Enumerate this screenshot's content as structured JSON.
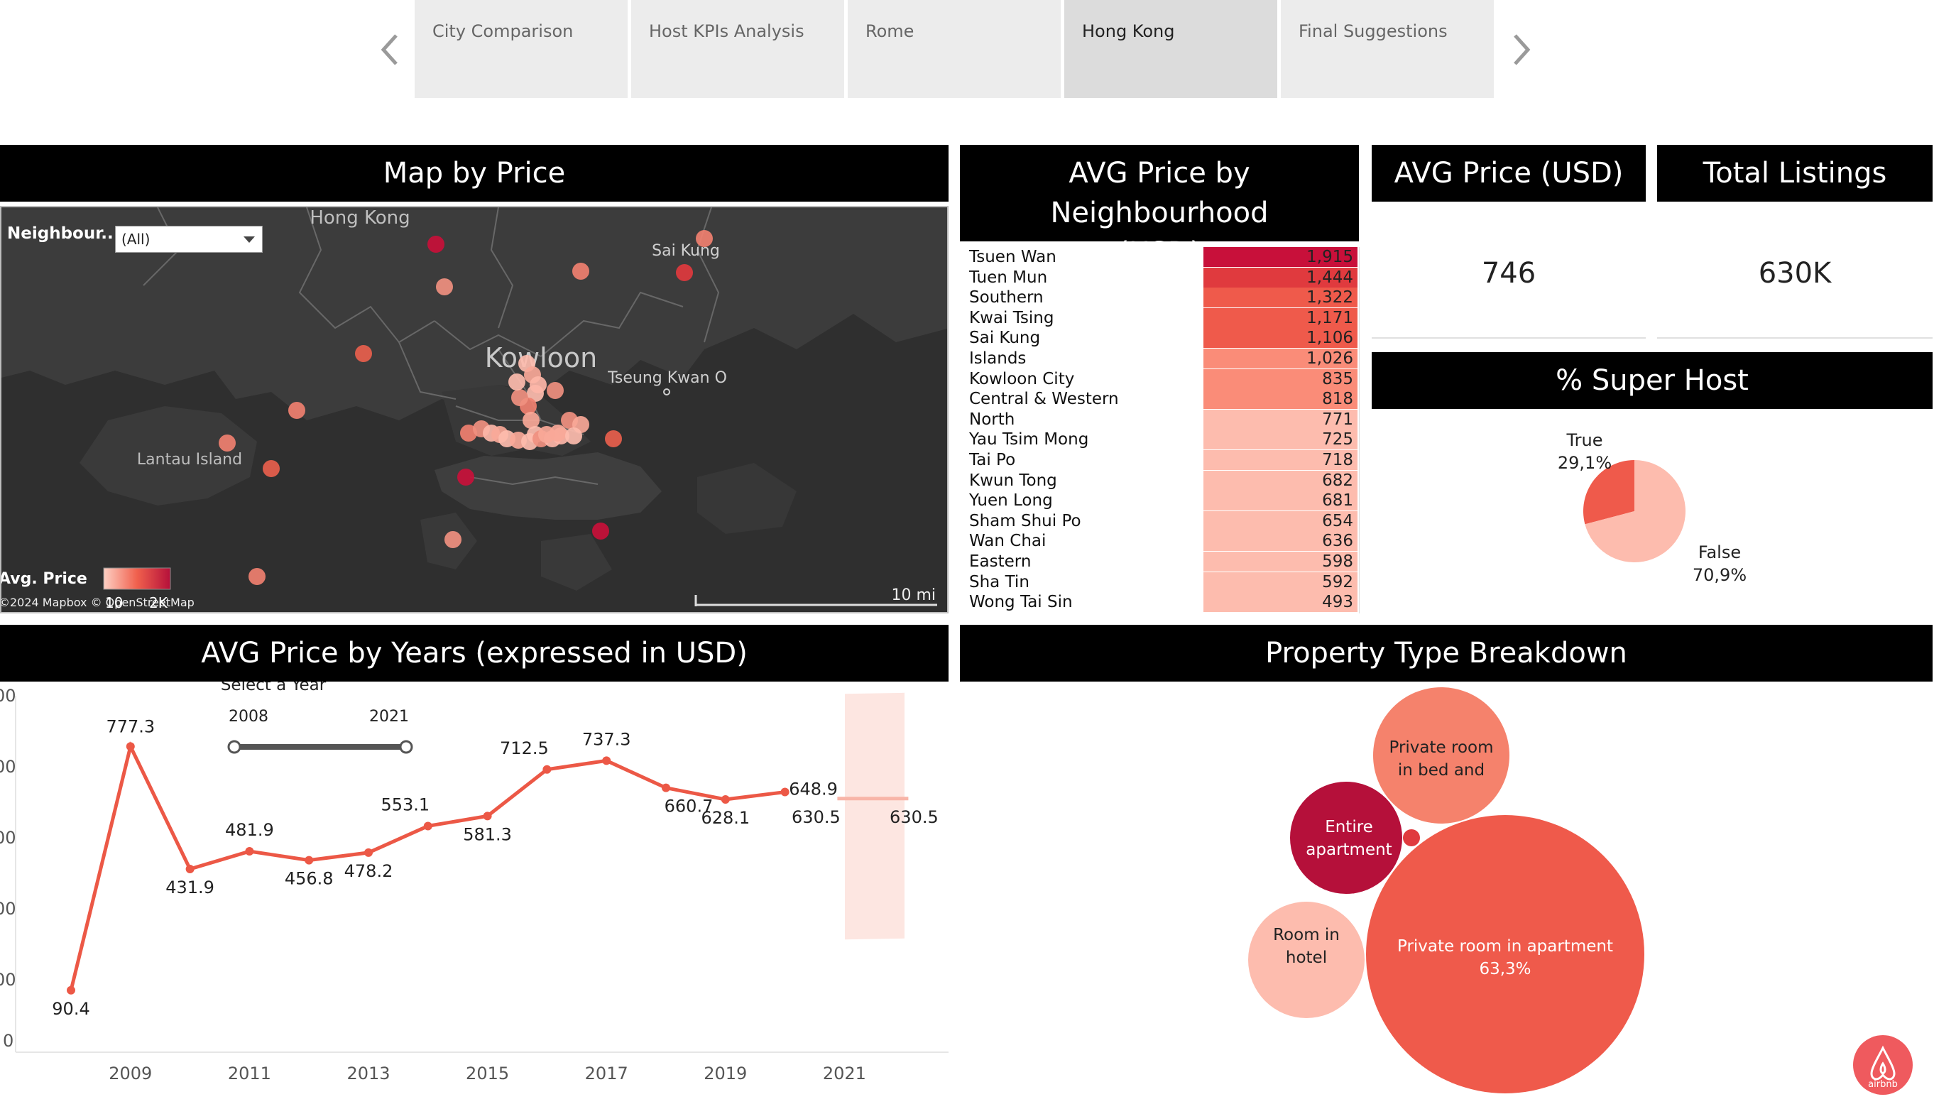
{
  "tabs": [
    {
      "label": "City Comparison",
      "active": false
    },
    {
      "label": "Host KPIs Analysis",
      "active": false
    },
    {
      "label": "Rome",
      "active": false
    },
    {
      "label": "Hong Kong",
      "active": true
    },
    {
      "label": "Final Suggestions",
      "active": false
    }
  ],
  "map": {
    "title": "Map by Price",
    "filter_label": "Neighbour..",
    "filter_value": "(All)",
    "place_labels": [
      "Hong Kong",
      "Sai Kung",
      "Kowloon",
      "Tseung Kwan O",
      "Lantau Island"
    ],
    "legend_title": "Avg. Price",
    "legend_min": "10",
    "legend_max": "2K",
    "attribution": "©2024 Mapbox © OpenStreetMap",
    "scale_label": "10 mi"
  },
  "neighbourhood": {
    "title_line1": "AVG Price by Neighbourhood",
    "title_line2": "(USD)",
    "rows": [
      {
        "name": "Tsuen Wan",
        "value": "1,915",
        "color": "#c8103a"
      },
      {
        "name": "Tuen Mun",
        "value": "1,444",
        "color": "#e03a3e"
      },
      {
        "name": "Southern",
        "value": "1,322",
        "color": "#ef5a4b"
      },
      {
        "name": "Kwai Tsing",
        "value": "1,171",
        "color": "#ef5a4b"
      },
      {
        "name": "Sai Kung",
        "value": "1,106",
        "color": "#ef5a4b"
      },
      {
        "name": "Islands",
        "value": "1,026",
        "color": "#fa8c78"
      },
      {
        "name": "Kowloon City",
        "value": "835",
        "color": "#fa8c78"
      },
      {
        "name": "Central & Western",
        "value": "818",
        "color": "#fa8c78"
      },
      {
        "name": "North",
        "value": "771",
        "color": "#fdbcae"
      },
      {
        "name": "Yau Tsim Mong",
        "value": "725",
        "color": "#fdbcae"
      },
      {
        "name": "Tai Po",
        "value": "718",
        "color": "#fdbcae"
      },
      {
        "name": "Kwun Tong",
        "value": "682",
        "color": "#fdbcae"
      },
      {
        "name": "Yuen Long",
        "value": "681",
        "color": "#fdbcae"
      },
      {
        "name": "Sham Shui Po",
        "value": "654",
        "color": "#fdbcae"
      },
      {
        "name": "Wan Chai",
        "value": "636",
        "color": "#fdbcae"
      },
      {
        "name": "Eastern",
        "value": "598",
        "color": "#fdbcae"
      },
      {
        "name": "Sha Tin",
        "value": "592",
        "color": "#fdbcae"
      },
      {
        "name": "Wong Tai Sin",
        "value": "493",
        "color": "#fdbcae"
      }
    ]
  },
  "kpi": {
    "avg_price_title": "AVG Price (USD)",
    "avg_price_value": "746",
    "listings_title": "Total Listings",
    "listings_value": "630K"
  },
  "superhost": {
    "title": "% Super Host",
    "true_label": "True",
    "true_pct": "29,1%",
    "true_value": 29.1,
    "false_label": "False",
    "false_pct": "70,9%",
    "false_value": 70.9,
    "true_color": "#ef5a4b",
    "false_color": "#fdbcae"
  },
  "years_chart": {
    "title": "AVG Price by Years (expressed in USD)",
    "slider_label": "Select a Year",
    "slider_min": "2008",
    "slider_max": "2021",
    "chart_data": {
      "type": "line",
      "x": [
        2008,
        2009,
        2010,
        2011,
        2012,
        2013,
        2014,
        2015,
        2016,
        2017,
        2018,
        2019,
        2020,
        2021
      ],
      "values": [
        90.4,
        777.3,
        431.9,
        481.9,
        456.8,
        478.2,
        553.1,
        581.3,
        712.5,
        737.3,
        660.7,
        628.1,
        648.9,
        630.5
      ],
      "labels": [
        "90.4",
        "777.3",
        "431.9",
        "481.9",
        "456.8",
        "478.2",
        "553.1",
        "581.3",
        "712.5",
        "737.3",
        "660.7",
        "628.1",
        "648.9",
        "630.5"
      ],
      "highlight_label": "630.5",
      "xticks": [
        "2009",
        "2011",
        "2013",
        "2015",
        "2017",
        "2019",
        "2021"
      ],
      "y_axis_zero": "0",
      "y_axis_fragments": [
        "00",
        "00",
        "00",
        "00",
        "00"
      ],
      "ylim": [
        0,
        1000
      ],
      "color": "#ec5846"
    }
  },
  "property": {
    "title": "Property Type Breakdown",
    "bubbles": [
      {
        "line1": "Private room in apartment",
        "line2": "63,3%",
        "color": "#ef5a4b"
      },
      {
        "line1": "Private room",
        "line2": "in bed and",
        "color": "#f5826c"
      },
      {
        "line1": "Entire",
        "line2": "apartment",
        "color": "#b5103a"
      },
      {
        "line1": "Room in",
        "line2": "hotel",
        "color": "#fdbcae"
      },
      {
        "line1": "",
        "line2": "",
        "color": "#e03a3e"
      }
    ]
  },
  "logo": {
    "text": "airbnb",
    "color": "#ef5a5e"
  }
}
